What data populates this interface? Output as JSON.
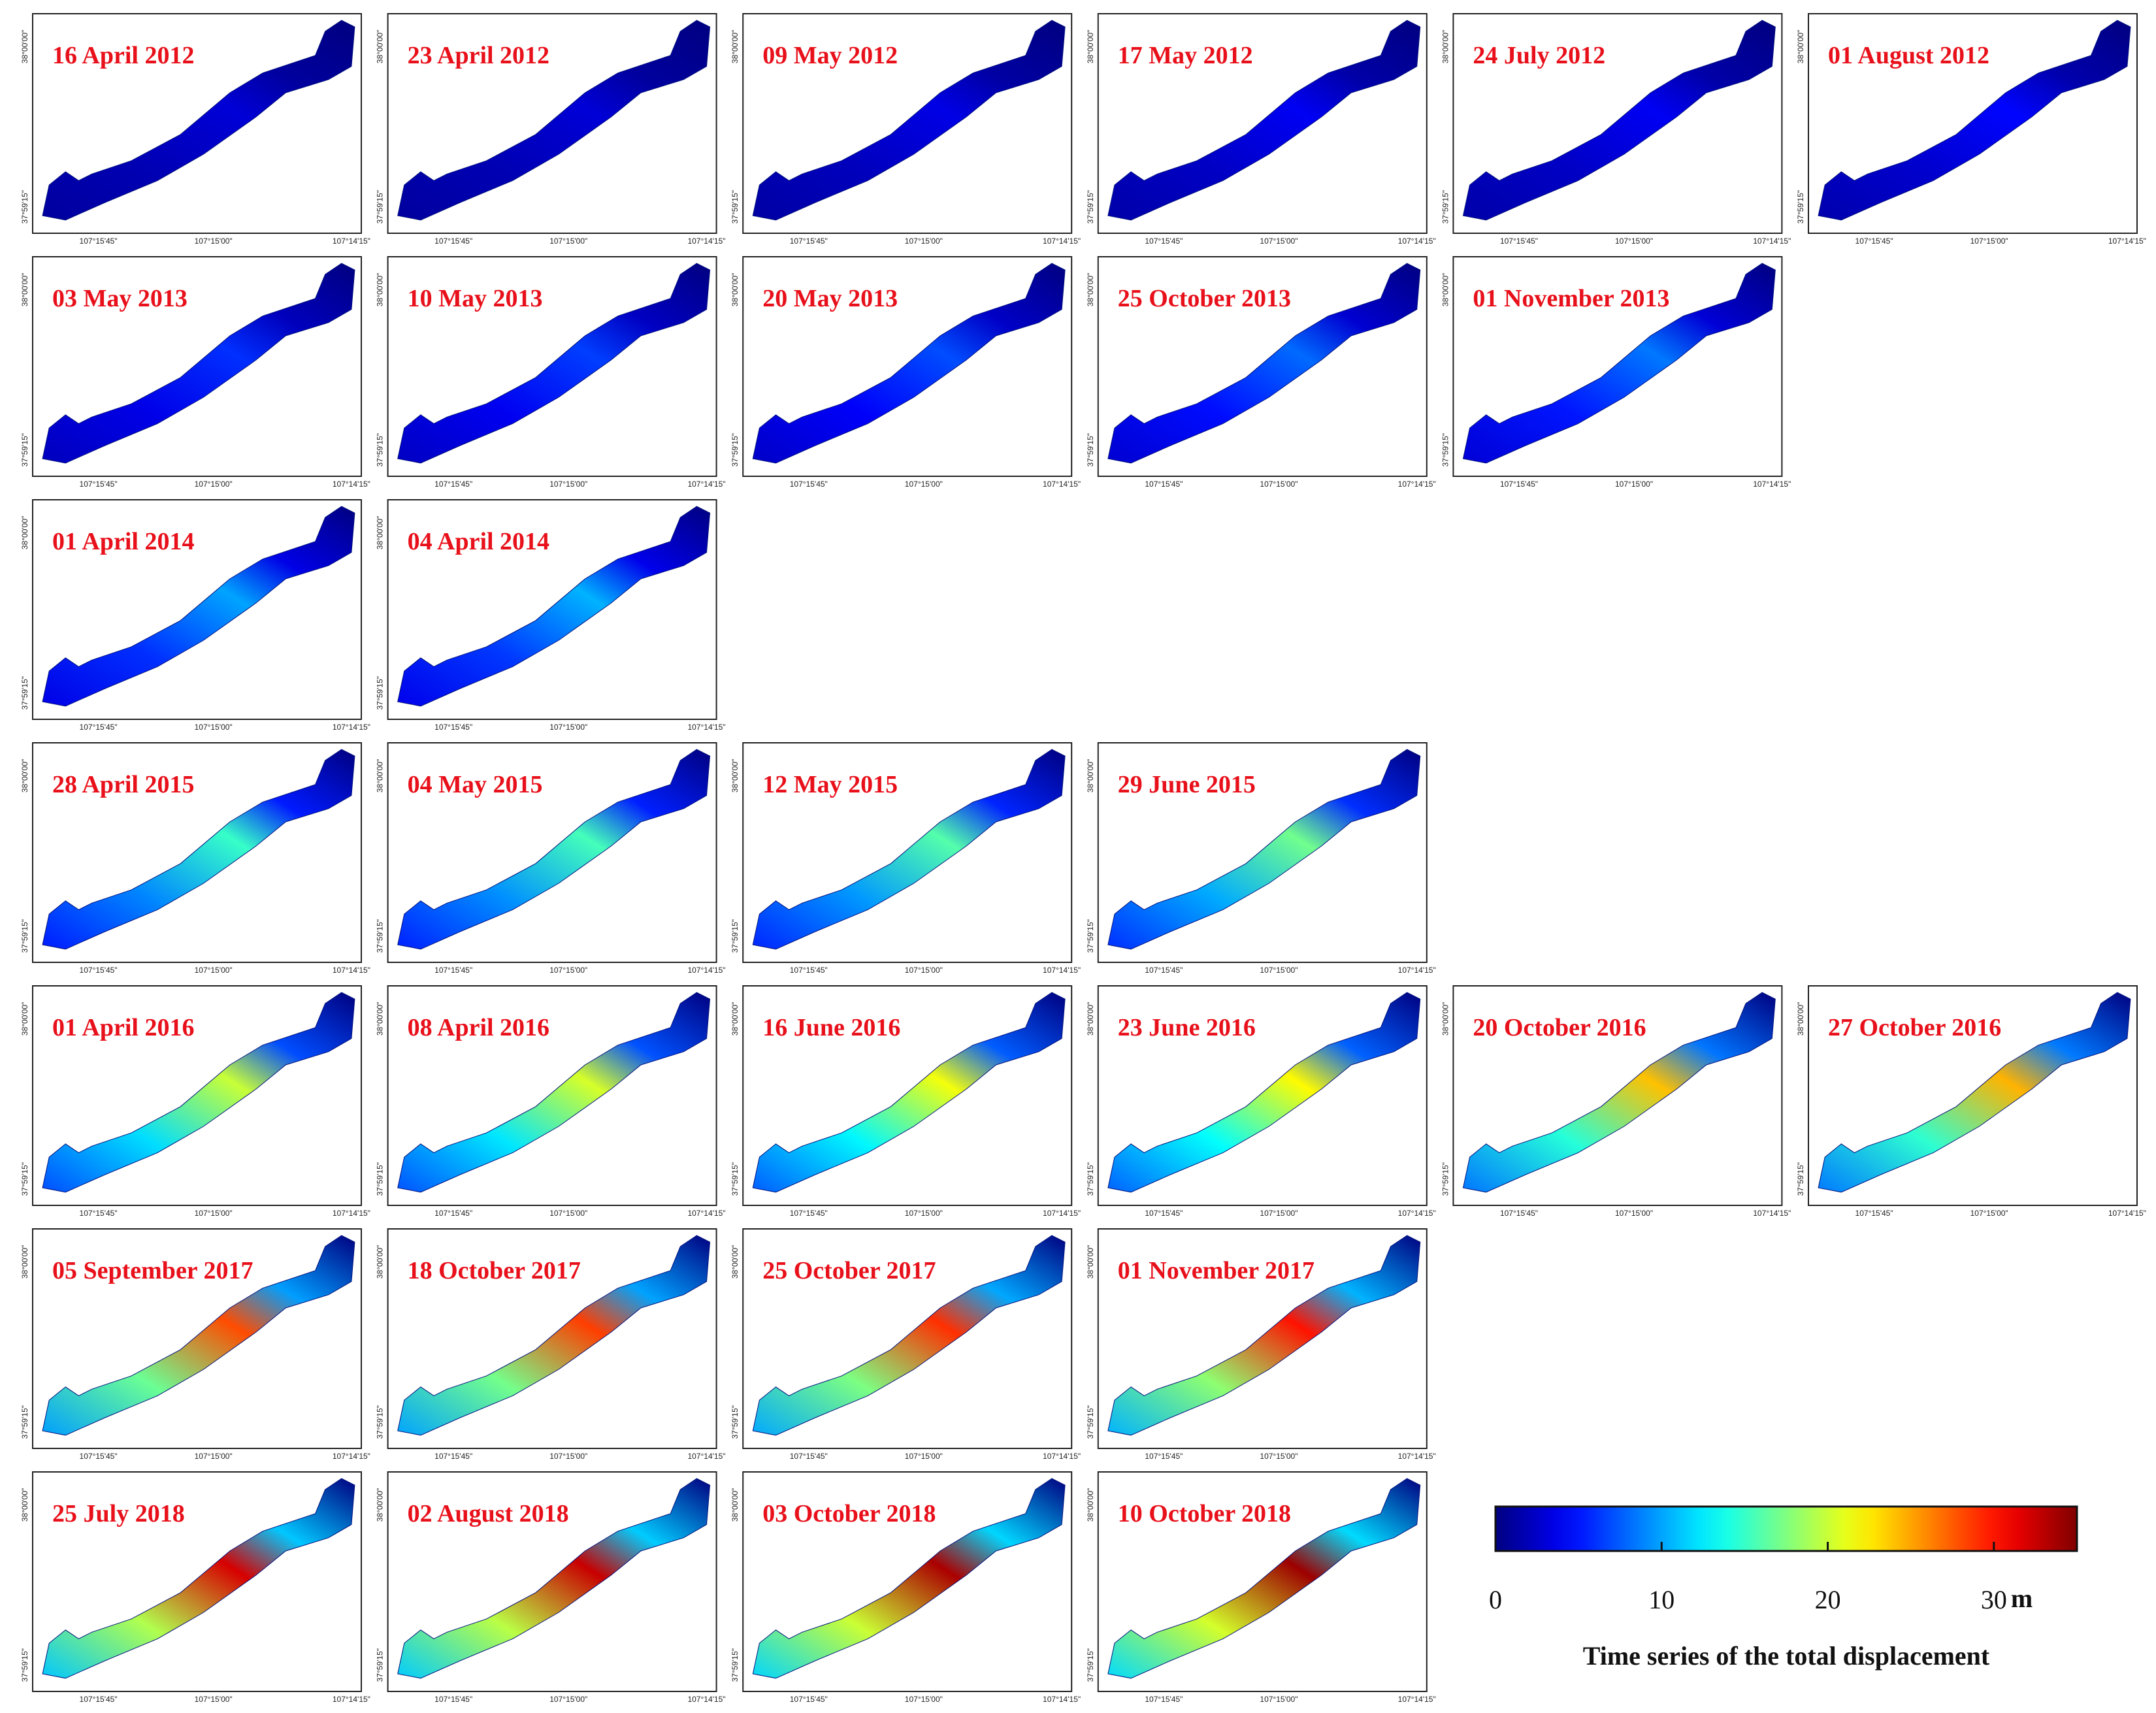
{
  "axis": {
    "xticks": [
      "107°15'45\"",
      "107°15'00\"",
      "107°14'15\""
    ],
    "yticks": [
      "38°00'00\"",
      "37°59'15\""
    ]
  },
  "rows": [
    [
      {
        "date": "16 April 2012",
        "peak": 3
      },
      {
        "date": "23 April 2012",
        "peak": 3
      },
      {
        "date": "09 May 2012",
        "peak": 3.5
      },
      {
        "date": "17 May 2012",
        "peak": 4
      },
      {
        "date": "24 July 2012",
        "peak": 4
      },
      {
        "date": "01 August 2012",
        "peak": 4.5
      }
    ],
    [
      {
        "date": "03 May 2013",
        "peak": 6
      },
      {
        "date": "10 May 2013",
        "peak": 6.5
      },
      {
        "date": "20 May 2013",
        "peak": 7
      },
      {
        "date": "25 October 2013",
        "peak": 8
      },
      {
        "date": "01 November 2013",
        "peak": 8.5
      }
    ],
    [
      {
        "date": "01 April 2014",
        "peak": 10
      },
      {
        "date": "04 April 2014",
        "peak": 10.5
      }
    ],
    [
      {
        "date": "28 April 2015",
        "peak": 15
      },
      {
        "date": "04 May 2015",
        "peak": 15.5
      },
      {
        "date": "12 May 2015",
        "peak": 16
      },
      {
        "date": "29 June 2015",
        "peak": 17
      }
    ],
    [
      {
        "date": "01 April 2016",
        "peak": 20
      },
      {
        "date": "08 April 2016",
        "peak": 20.5
      },
      {
        "date": "16 June 2016",
        "peak": 21.5
      },
      {
        "date": "23 June 2016",
        "peak": 22
      },
      {
        "date": "20 October 2016",
        "peak": 24
      },
      {
        "date": "27 October 2016",
        "peak": 24.5
      }
    ],
    [
      {
        "date": "05 September 2017",
        "peak": 28
      },
      {
        "date": "18 October 2017",
        "peak": 28.5
      },
      {
        "date": "25 October 2017",
        "peak": 29
      },
      {
        "date": "01 November 2017",
        "peak": 30
      }
    ],
    [
      {
        "date": "25 July 2018",
        "peak": 32
      },
      {
        "date": "02 August 2018",
        "peak": 32.5
      },
      {
        "date": "03 October 2018",
        "peak": 33.5
      },
      {
        "date": "10 October 2018",
        "peak": 34
      }
    ]
  ],
  "colorbar": {
    "lim": [
      0,
      35
    ],
    "ticks": [
      0,
      10,
      20,
      30
    ],
    "unit": "m",
    "title": "Time series of the total displacement"
  }
}
